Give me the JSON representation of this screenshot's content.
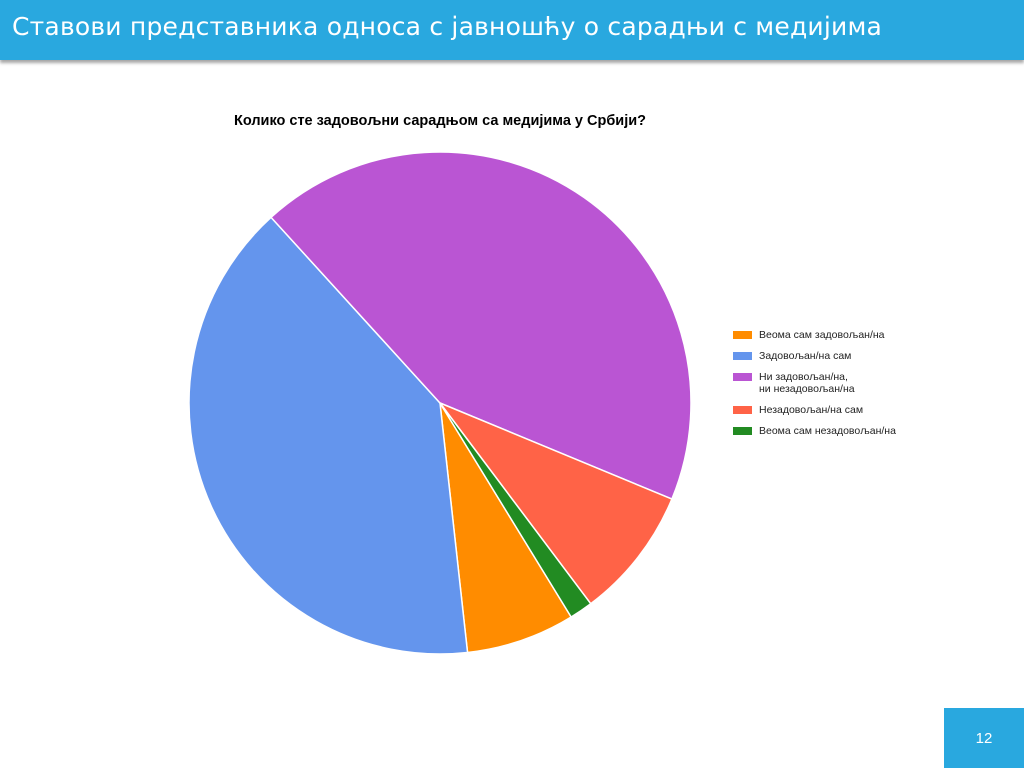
{
  "header": {
    "title": "Ставови представника односа с јавношћу о сарадњи с медијима"
  },
  "footer": {
    "page_number": "12"
  },
  "colors": {
    "header_bg": "#29a8df"
  },
  "chart_data": {
    "type": "pie",
    "title": "Колико сте задовољни сарадњом са медијима у Србији?",
    "legend_position": "right",
    "slices": [
      {
        "label": "Веома сам задовољан/на",
        "value": 7.0,
        "color": "#ff8c00"
      },
      {
        "label": "Задовољан/на сам",
        "value": 40.0,
        "color": "#6495ed"
      },
      {
        "label": "Ни задовољан/на,\nни незадовољан/на",
        "value": 43.0,
        "color": "#ba55d3"
      },
      {
        "label": "Незадовољан/на сам",
        "value": 8.5,
        "color": "#ff6347"
      },
      {
        "label": "Веома сам незадовољан/на",
        "value": 1.5,
        "color": "#228b22"
      }
    ]
  }
}
